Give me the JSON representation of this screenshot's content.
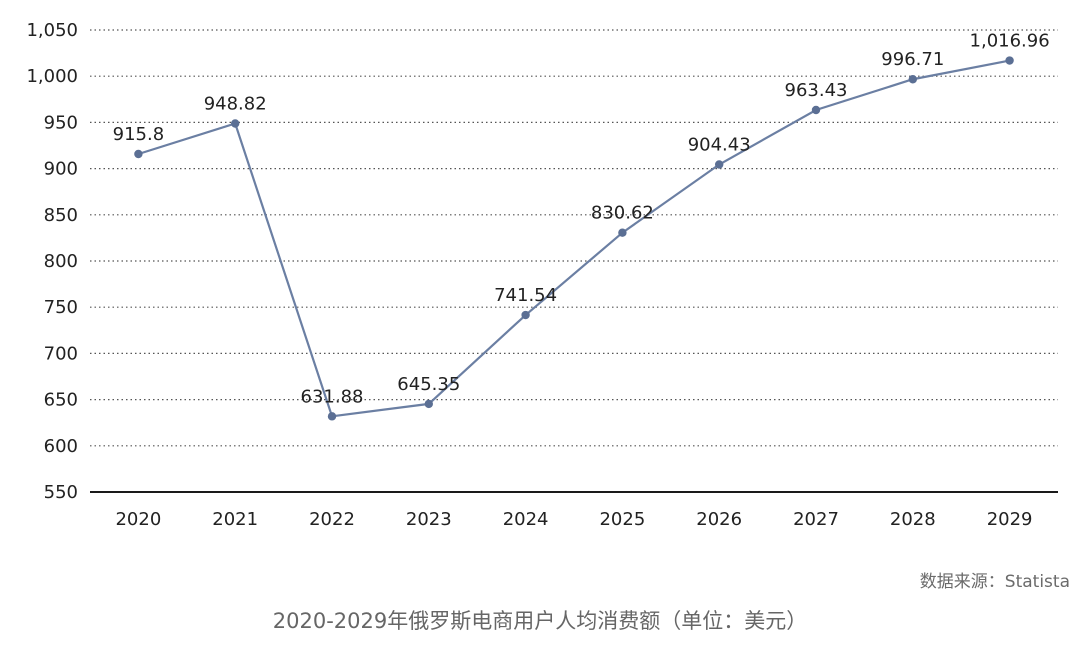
{
  "chart_data": {
    "type": "line",
    "x": [
      "2020",
      "2021",
      "2022",
      "2023",
      "2024",
      "2025",
      "2026",
      "2027",
      "2028",
      "2029"
    ],
    "series": [
      {
        "values": [
          915.8,
          948.82,
          631.88,
          645.35,
          741.54,
          830.62,
          904.43,
          963.43,
          996.71,
          1016.96
        ]
      }
    ],
    "data_labels": [
      "915.8",
      "948.82",
      "631.88",
      "645.35",
      "741.54",
      "830.62",
      "904.43",
      "963.43",
      "996.71",
      "1,016.96"
    ],
    "yticks": [
      550,
      600,
      650,
      700,
      750,
      800,
      850,
      900,
      950,
      1000,
      1050
    ],
    "ytick_labels": [
      "550",
      "600",
      "650",
      "700",
      "750",
      "800",
      "850",
      "900",
      "950",
      "1,000",
      "1,050"
    ],
    "ylim": [
      550,
      1050
    ],
    "grid": "horizontal dotted",
    "line_color": "#6b7fa3",
    "marker_color": "#5b6f94"
  },
  "source_text": "数据来源：Statista",
  "caption": "2020-2029年俄罗斯电商用户人均消费额（单位：美元）"
}
